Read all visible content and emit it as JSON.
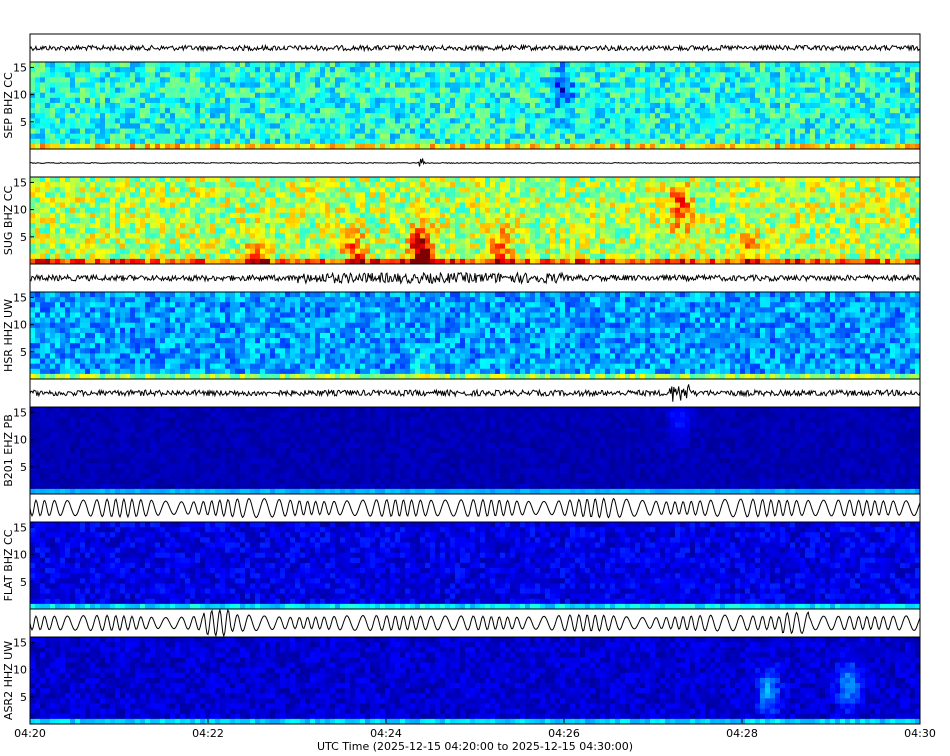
{
  "colors": {
    "spectrogram_low": "#00008f",
    "spectrogram_mid": "#00ffff",
    "spectrogram_high": "#ff0000",
    "trace": "#000000",
    "frame": "#000000"
  },
  "chart_data": {
    "type": "heatmap",
    "title": "",
    "xlabel": "UTC Time (2025-12-15 04:20:00 to 2025-12-15 04:30:00)",
    "ylabel_note": "frequency",
    "x_ticks": [
      "04:20",
      "04:22",
      "04:24",
      "04:26",
      "04:28",
      "04:30"
    ],
    "x_range": [
      "04:20",
      "04:30"
    ],
    "y_ticks": [
      5,
      10,
      15
    ],
    "y_range": [
      0,
      16
    ],
    "grid": false,
    "channels": [
      {
        "label": "SEP BHZ CC",
        "base_level": 0.4,
        "texture": 0.25,
        "trace_amp": 0.35,
        "trace_style": "noise",
        "hot_spots": [
          {
            "t": 0.6,
            "f": 11,
            "level": -0.25
          }
        ]
      },
      {
        "label": "SUG BHZ CC",
        "base_level": 0.55,
        "texture": 0.3,
        "trace_amp": 0.15,
        "trace_style": "quiet",
        "hot_spots": [
          {
            "t": 0.44,
            "f": 2,
            "level": 0.55
          },
          {
            "t": 0.365,
            "f": 2,
            "level": 0.25
          },
          {
            "t": 0.53,
            "f": 2,
            "level": 0.25
          },
          {
            "t": 0.73,
            "f": 10,
            "level": 0.3
          },
          {
            "t": 0.255,
            "f": 1,
            "level": 0.2
          },
          {
            "t": 0.81,
            "f": 2,
            "level": 0.15
          }
        ]
      },
      {
        "label": "HSR HHZ UW",
        "base_level": 0.28,
        "texture": 0.2,
        "trace_amp": 0.4,
        "trace_style": "burst",
        "hot_spots": [
          {
            "t": 0.44,
            "f": 1,
            "level": 0.1
          }
        ]
      },
      {
        "label": "B201 EHZ PB",
        "base_level": 0.05,
        "texture": 0.05,
        "trace_amp": 0.4,
        "trace_style": "event",
        "hot_spots": [
          {
            "t": 0.73,
            "f": 14,
            "level": 0.1
          }
        ]
      },
      {
        "label": "FLAT BHZ CC",
        "base_level": 0.1,
        "texture": 0.12,
        "trace_amp": 0.8,
        "trace_style": "wave",
        "hot_spots": []
      },
      {
        "label": "ASR2 HHZ UW",
        "base_level": 0.08,
        "texture": 0.1,
        "trace_amp": 0.7,
        "trace_style": "wave2",
        "hot_spots": [
          {
            "t": 0.83,
            "f": 6,
            "level": 0.2
          },
          {
            "t": 0.92,
            "f": 7,
            "level": 0.2
          }
        ]
      }
    ]
  }
}
